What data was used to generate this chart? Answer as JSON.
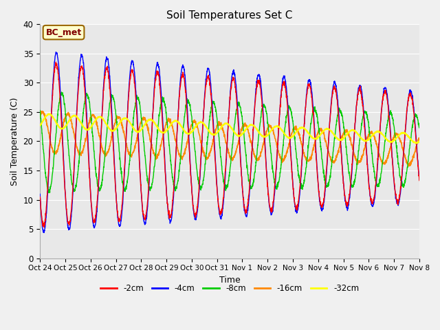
{
  "title": "Soil Temperatures Set C",
  "xlabel": "Time",
  "ylabel": "Soil Temperature (C)",
  "ylim": [
    0,
    40
  ],
  "background_color": "#e8e8e8",
  "fig_background_color": "#f0f0f0",
  "annotation_text": "BC_met",
  "annotation_box_color": "#ffffcc",
  "annotation_text_color": "#800000",
  "annotation_edge_color": "#996600",
  "colors": {
    "-2cm": "#ff0000",
    "-4cm": "#0000ff",
    "-8cm": "#00cc00",
    "-16cm": "#ff8800",
    "-32cm": "#ffff00"
  },
  "xtick_labels": [
    "Oct 24",
    "Oct 25",
    "Oct 26",
    "Oct 27",
    "Oct 28",
    "Oct 29",
    "Oct 30",
    "Oct 31",
    "Nov 1",
    "Nov 2",
    "Nov 3",
    "Nov 4",
    "Nov 5",
    "Nov 6",
    "Nov 7",
    "Nov 8"
  ],
  "ytick_labels": [
    0,
    5,
    10,
    15,
    20,
    25,
    30,
    35,
    40
  ],
  "figsize": [
    6.4,
    4.8
  ],
  "dpi": 100
}
